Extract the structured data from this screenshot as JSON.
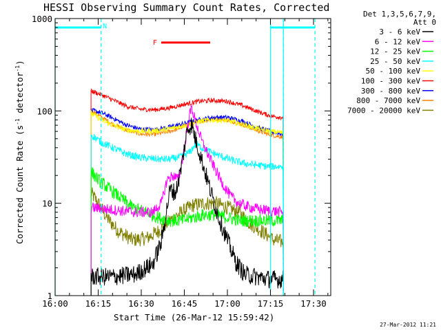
{
  "chart_data": {
    "type": "line",
    "title": "HESSI Observing Summary Count Rates, Corrected",
    "xlabel": "Start Time (26-Mar-12 15:59:42)",
    "ylabel_main": "Corrected Count Rate (s",
    "ylabel_sup1": "-1",
    "ylabel_mid": " detector",
    "ylabel_sup2": "-1",
    "ylabel_end": ")",
    "yscale": "log",
    "ylim": [
      1,
      1000
    ],
    "xlim_minutes": [
      0,
      96
    ],
    "x_tick_labels": [
      "16:00",
      "16:15",
      "16:30",
      "16:45",
      "17:00",
      "17:15",
      "17:30"
    ],
    "x_tick_minutes": [
      0,
      15,
      30,
      45,
      60,
      75,
      90
    ],
    "y_tick_labels": [
      "1",
      "10",
      "100",
      "1000"
    ],
    "y_tick_values": [
      1,
      10,
      100,
      1000
    ],
    "legend_header_1": "Det 1,3,5,6,7,9,",
    "legend_header_2": "Att 0",
    "stamp": "27-Mar-2012 11:21",
    "data_start_minute": 12.5,
    "data_end_minute": 79.5,
    "series": [
      {
        "name": "3 - 6 keV",
        "color": "#000000",
        "noise": 0.1,
        "points": [
          [
            12.5,
            1.6
          ],
          [
            20,
            1.6
          ],
          [
            28,
            1.7
          ],
          [
            34,
            2.2
          ],
          [
            37,
            3.8
          ],
          [
            40,
            14
          ],
          [
            42,
            13
          ],
          [
            44,
            25
          ],
          [
            46,
            62
          ],
          [
            47.5,
            72
          ],
          [
            49,
            48
          ],
          [
            51,
            30
          ],
          [
            54,
            14
          ],
          [
            57,
            7
          ],
          [
            60,
            4
          ],
          [
            63,
            2.3
          ],
          [
            66,
            1.7
          ],
          [
            70,
            1.6
          ],
          [
            75,
            1.5
          ],
          [
            79.5,
            1.5
          ]
        ]
      },
      {
        "name": "6 - 12 keV",
        "color": "#ff00ff",
        "noise": 0.06,
        "points": [
          [
            12.5,
            9
          ],
          [
            20,
            8.5
          ],
          [
            28,
            8
          ],
          [
            34,
            8
          ],
          [
            37,
            10
          ],
          [
            39,
            18
          ],
          [
            41,
            20
          ],
          [
            43,
            18
          ],
          [
            45,
            40
          ],
          [
            46.5,
            80
          ],
          [
            47.5,
            110
          ],
          [
            49,
            75
          ],
          [
            51,
            48
          ],
          [
            53,
            35
          ],
          [
            55,
            26
          ],
          [
            58,
            17
          ],
          [
            61,
            12
          ],
          [
            64,
            10
          ],
          [
            68,
            9
          ],
          [
            72,
            8.5
          ],
          [
            79.5,
            8
          ]
        ]
      },
      {
        "name": "12 - 25 keV",
        "color": "#00ff00",
        "noise": 0.07,
        "points": [
          [
            12.5,
            22
          ],
          [
            15,
            18
          ],
          [
            18,
            15
          ],
          [
            22,
            12
          ],
          [
            27,
            9
          ],
          [
            32,
            8
          ],
          [
            36,
            7
          ],
          [
            40,
            6.5
          ],
          [
            44,
            6.5
          ],
          [
            48,
            7
          ],
          [
            52,
            7.5
          ],
          [
            56,
            7.5
          ],
          [
            60,
            7
          ],
          [
            64,
            6.5
          ],
          [
            68,
            6.5
          ],
          [
            72,
            6.5
          ],
          [
            76,
            6.5
          ],
          [
            79.5,
            6.5
          ]
        ]
      },
      {
        "name": "25 - 50 keV",
        "color": "#00ffff",
        "noise": 0.04,
        "points": [
          [
            12.5,
            55
          ],
          [
            16,
            46
          ],
          [
            20,
            40
          ],
          [
            25,
            34
          ],
          [
            30,
            31
          ],
          [
            36,
            30
          ],
          [
            40,
            30
          ],
          [
            44,
            32
          ],
          [
            47,
            36
          ],
          [
            49,
            44
          ],
          [
            51,
            40
          ],
          [
            54,
            36
          ],
          [
            58,
            32
          ],
          [
            62,
            29
          ],
          [
            66,
            27
          ],
          [
            70,
            26
          ],
          [
            74,
            25
          ],
          [
            79.5,
            25
          ]
        ]
      },
      {
        "name": "50 - 100 keV",
        "color": "#ffff00",
        "noise": 0.03,
        "points": [
          [
            12.5,
            95
          ],
          [
            16,
            80
          ],
          [
            20,
            70
          ],
          [
            25,
            62
          ],
          [
            30,
            60
          ],
          [
            35,
            61
          ],
          [
            40,
            64
          ],
          [
            45,
            70
          ],
          [
            50,
            77
          ],
          [
            55,
            80
          ],
          [
            60,
            78
          ],
          [
            65,
            72
          ],
          [
            70,
            65
          ],
          [
            75,
            60
          ],
          [
            79.5,
            58
          ]
        ]
      },
      {
        "name": "100 - 300 keV",
        "color": "#ff0000",
        "noise": 0.025,
        "points": [
          [
            12.5,
            165
          ],
          [
            16,
            150
          ],
          [
            20,
            132
          ],
          [
            25,
            112
          ],
          [
            30,
            104
          ],
          [
            35,
            103
          ],
          [
            40,
            108
          ],
          [
            45,
            118
          ],
          [
            50,
            127
          ],
          [
            55,
            130
          ],
          [
            60,
            127
          ],
          [
            65,
            115
          ],
          [
            70,
            100
          ],
          [
            75,
            88
          ],
          [
            79.5,
            85
          ]
        ]
      },
      {
        "name": "300 - 800 keV",
        "color": "#0000ff",
        "noise": 0.025,
        "points": [
          [
            12.5,
            102
          ],
          [
            16,
            96
          ],
          [
            20,
            84
          ],
          [
            25,
            70
          ],
          [
            30,
            63
          ],
          [
            35,
            63
          ],
          [
            40,
            67
          ],
          [
            45,
            73
          ],
          [
            50,
            80
          ],
          [
            55,
            85
          ],
          [
            60,
            85
          ],
          [
            65,
            78
          ],
          [
            70,
            67
          ],
          [
            75,
            60
          ],
          [
            79.5,
            56
          ]
        ]
      },
      {
        "name": "800 - 7000 keV",
        "color": "#ff8000",
        "noise": 0.025,
        "points": [
          [
            12.5,
            100
          ],
          [
            16,
            86
          ],
          [
            20,
            72
          ],
          [
            25,
            62
          ],
          [
            30,
            56
          ],
          [
            35,
            56
          ],
          [
            40,
            60
          ],
          [
            45,
            68
          ],
          [
            50,
            77
          ],
          [
            55,
            82
          ],
          [
            60,
            80
          ],
          [
            65,
            72
          ],
          [
            70,
            62
          ],
          [
            75,
            55
          ],
          [
            79.5,
            52
          ]
        ]
      },
      {
        "name": "7000 - 20000 keV",
        "color": "#808000",
        "noise": 0.08,
        "points": [
          [
            12.5,
            13
          ],
          [
            15,
            10
          ],
          [
            18,
            7
          ],
          [
            22,
            5
          ],
          [
            27,
            4
          ],
          [
            32,
            4.2
          ],
          [
            36,
            5
          ],
          [
            40,
            6.5
          ],
          [
            44,
            8
          ],
          [
            48,
            9.5
          ],
          [
            52,
            10
          ],
          [
            56,
            10
          ],
          [
            60,
            9
          ],
          [
            64,
            8
          ],
          [
            68,
            6
          ],
          [
            72,
            5
          ],
          [
            76,
            4
          ],
          [
            79.5,
            3.8
          ]
        ]
      }
    ],
    "cyan_lines": {
      "color": "#00ffff",
      "solid_minutes": [
        0,
        75,
        79.5
      ],
      "dashed_minutes": [
        16,
        79.5,
        90.5
      ],
      "top_bars": [
        [
          0,
          16
        ],
        [
          75,
          90.5
        ]
      ],
      "top_bar_value": 800,
      "top_label": "N",
      "top_label_minute": 16.6
    },
    "flare_marker": {
      "label": "F",
      "color": "#ff0000",
      "start_minute": 36,
      "end_minute": 54,
      "value": 550
    }
  }
}
